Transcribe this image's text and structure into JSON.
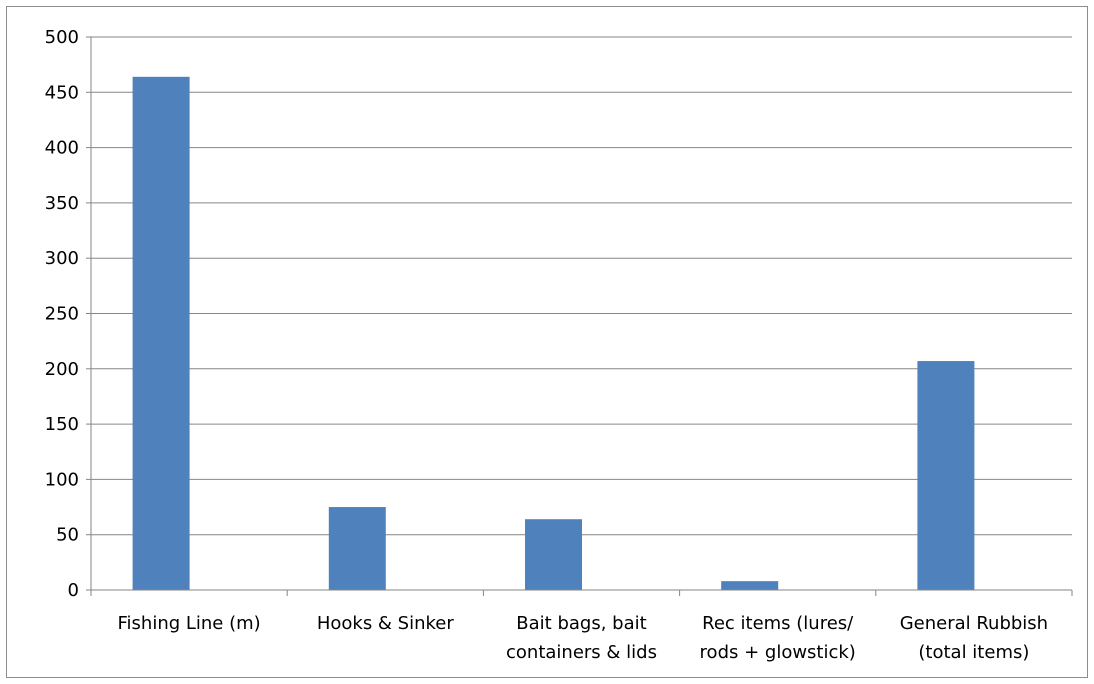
{
  "chart_data": {
    "type": "bar",
    "categories": [
      [
        "Fishing Line (m)"
      ],
      [
        "Hooks & Sinker"
      ],
      [
        "Bait bags, bait",
        "containers & lids"
      ],
      [
        "Rec items (lures/",
        "rods + glowstick)"
      ],
      [
        "General Rubbish",
        "(total items)"
      ]
    ],
    "values": [
      464,
      75,
      64,
      8,
      207
    ],
    "ylim": [
      0,
      500
    ],
    "yticks": [
      "0",
      "50",
      "100",
      "150",
      "200",
      "250",
      "300",
      "350",
      "400",
      "450",
      "500"
    ],
    "title": "",
    "xlabel": "",
    "ylabel": "",
    "grid": true,
    "legend": "none",
    "bar_color": "#4f81bd",
    "grid_color": "#868686",
    "axis_color": "#868686"
  }
}
